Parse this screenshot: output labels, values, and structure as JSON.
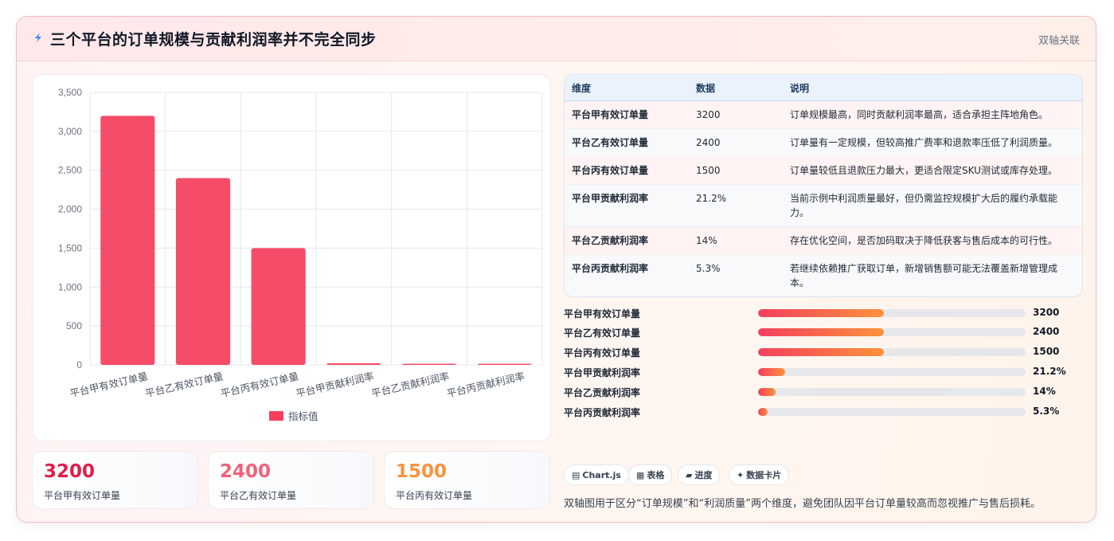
{
  "header": {
    "title": "三个平台的订单规模与贡献利润率并不完全同步",
    "tag": "双轴关联",
    "icon": "lightning-icon"
  },
  "chart_data": {
    "type": "bar",
    "categories": [
      "平台甲有效订单量",
      "平台乙有效订单量",
      "平台丙有效订单量",
      "平台甲贡献利润率",
      "平台乙贡献利润率",
      "平台丙贡献利润率"
    ],
    "series": [
      {
        "name": "指标值",
        "values": [
          3200,
          2400,
          1500,
          21.2,
          14,
          5.3
        ],
        "color": "#f43f5e"
      }
    ],
    "yticks": [
      "0",
      "500",
      "1,000",
      "1,500",
      "2,000",
      "2,500",
      "3,000",
      "3,500"
    ],
    "ylim": [
      0,
      3500
    ],
    "grid": true,
    "legend": "bottom"
  },
  "kpis": [
    {
      "value": "3200",
      "label": "平台甲有效订单量",
      "color": "#e11d48"
    },
    {
      "value": "2400",
      "label": "平台乙有效订单量",
      "color": "#f0647b"
    },
    {
      "value": "1500",
      "label": "平台丙有效订单量",
      "color": "#fb923c"
    }
  ],
  "table": {
    "headers": [
      "维度",
      "数据",
      "说明"
    ],
    "rows": [
      {
        "dim": "平台甲有效订单量",
        "val": "3200",
        "note": "订单规模最高，同时贡献利润率最高，适合承担主阵地角色。"
      },
      {
        "dim": "平台乙有效订单量",
        "val": "2400",
        "note": "订单量有一定规模，但较高推广费率和退款率压低了利润质量。"
      },
      {
        "dim": "平台丙有效订单量",
        "val": "1500",
        "note": "订单量较低且退款压力最大，更适合限定SKU测试或库存处理。"
      },
      {
        "dim": "平台甲贡献利润率",
        "val": "21.2%",
        "note": "当前示例中利润质量最好，但仍需监控规模扩大后的履约承载能力。"
      },
      {
        "dim": "平台乙贡献利润率",
        "val": "14%",
        "note": "存在优化空间，是否加码取决于降低获客与售后成本的可行性。"
      },
      {
        "dim": "平台丙贡献利润率",
        "val": "5.3%",
        "note": "若继续依赖推广获取订单，新增销售额可能无法覆盖新增管理成本。"
      }
    ]
  },
  "progress": [
    {
      "label": "平台甲有效订单量",
      "value": "3200",
      "fraction": 0.47
    },
    {
      "label": "平台乙有效订单量",
      "value": "2400",
      "fraction": 0.47
    },
    {
      "label": "平台丙有效订单量",
      "value": "1500",
      "fraction": 0.47
    },
    {
      "label": "平台甲贡献利润率",
      "value": "21.2%",
      "fraction": 0.1
    },
    {
      "label": "平台乙贡献利润率",
      "value": "14%",
      "fraction": 0.065
    },
    {
      "label": "平台丙贡献利润率",
      "value": "5.3%",
      "fraction": 0.035
    }
  ],
  "chips": [
    {
      "icon": "▤",
      "label": "Chart.js"
    },
    {
      "icon": "▦",
      "label": "表格"
    },
    {
      "icon": "▰",
      "label": "进度"
    },
    {
      "icon": "✦",
      "label": "数据卡片"
    }
  ],
  "footer": "双轴图用于区分“订单规模”和“利润质量”两个维度，避免团队因平台订单量较高而忽视推广与售后损耗。"
}
